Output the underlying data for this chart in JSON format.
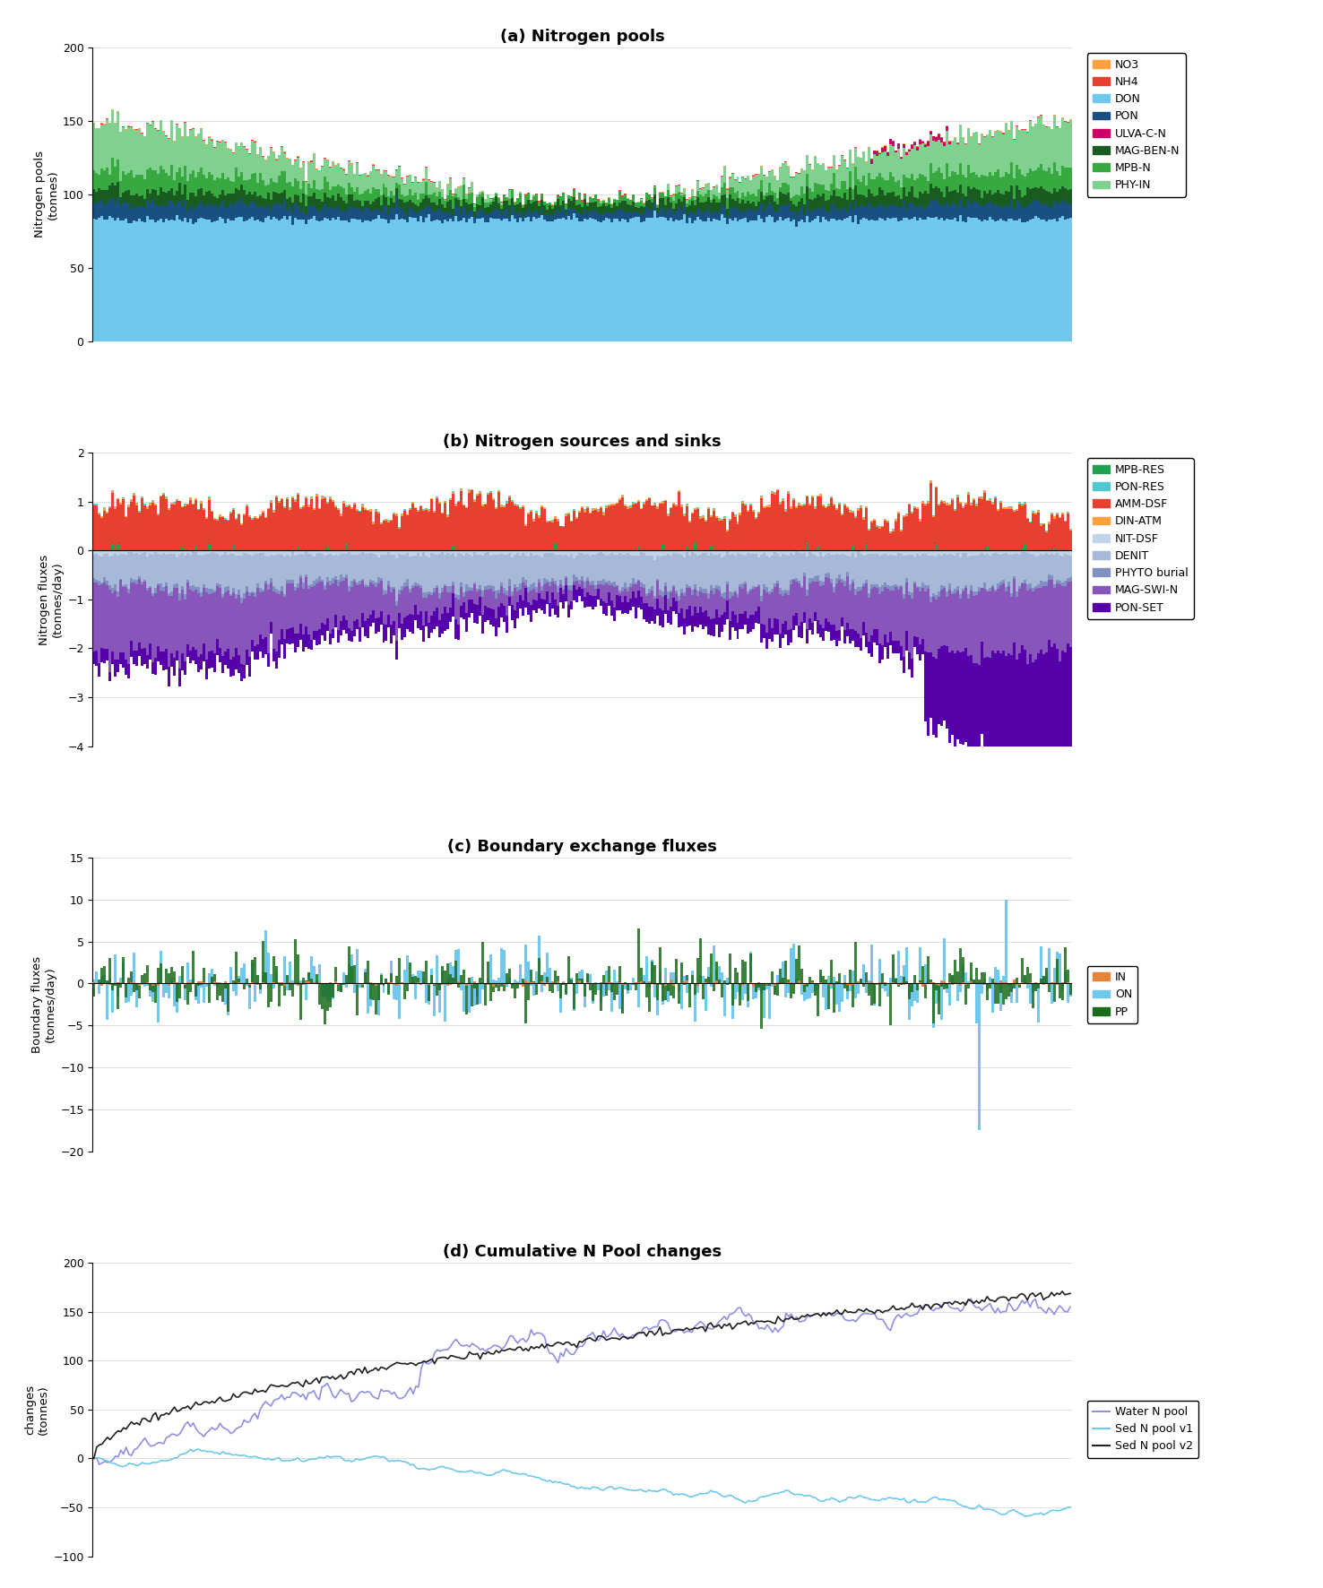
{
  "title_a": "(a) Nitrogen pools",
  "title_b": "(b) Nitrogen sources and sinks",
  "title_c": "(c) Boundary exchange fluxes",
  "title_d": "(d) Cumulative N Pool changes",
  "ylabel_a": "Nitrogen pools\n(tonnes)",
  "ylabel_b": "Nitrogen fluxes\n(tonnes/day)",
  "ylabel_c": "Boundary fluxes\n(tonnes/day)",
  "ylabel_d": "changes\n(tonnes)",
  "ylim_a": [
    0,
    200
  ],
  "ylim_b": [
    -4,
    2
  ],
  "ylim_c": [
    -20,
    15
  ],
  "ylim_d": [
    -100,
    200
  ],
  "yticks_a": [
    0,
    50,
    100,
    150,
    200
  ],
  "yticks_b": [
    -4,
    -3,
    -2,
    -1,
    0,
    1,
    2
  ],
  "yticks_c": [
    -20,
    -15,
    -10,
    -5,
    0,
    5,
    10,
    15
  ],
  "yticks_d": [
    -100,
    -50,
    0,
    50,
    100,
    150,
    200
  ],
  "n_steps": 365,
  "colors_a": {
    "NO3": "#FFA040",
    "NH4": "#E84030",
    "DON": "#70C8EC",
    "PON": "#1A5080",
    "ULVA_C_N": "#CC0066",
    "MAG_BEN_N": "#1A5C20",
    "MPB_N": "#38A840",
    "PHY_IN": "#80D090"
  },
  "colors_b": {
    "MPB_RES": "#20A050",
    "PON_RES": "#50C8D0",
    "AMM_DSF": "#E84030",
    "DIN_ATM": "#FFA040",
    "NIT_DSF": "#C0D4EC",
    "DENIT": "#A8B8D8",
    "PHYTO_burial": "#8090C0",
    "MAG_SWI_N": "#8855BB",
    "PON_SET": "#5500AA"
  },
  "colors_c": {
    "IN": "#E8833A",
    "ON": "#70C8EC",
    "PP": "#1A6B1A"
  },
  "colors_d": {
    "Water N pool": "#9090E0",
    "Sed N pool v1": "#70C8EC",
    "Sed N pool v2": "#202020"
  }
}
